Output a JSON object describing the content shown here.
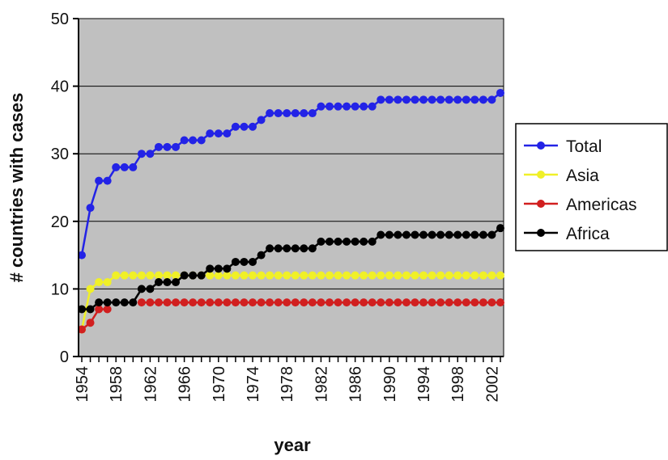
{
  "chart_data": {
    "type": "line",
    "title": "",
    "xlabel": "year",
    "ylabel": "# countries with cases",
    "ylim": [
      0,
      50
    ],
    "yticks": [
      0,
      10,
      20,
      30,
      40,
      50
    ],
    "xlim": [
      1954,
      2003
    ],
    "xticks": [
      1954,
      1958,
      1962,
      1966,
      1970,
      1974,
      1978,
      1982,
      1986,
      1990,
      1994,
      1998,
      2002
    ],
    "grid": true,
    "legend_position": "right",
    "plot_background": "#c0c0c0",
    "x": [
      1954,
      1955,
      1956,
      1957,
      1958,
      1959,
      1960,
      1961,
      1962,
      1963,
      1964,
      1965,
      1966,
      1967,
      1968,
      1969,
      1970,
      1971,
      1972,
      1973,
      1974,
      1975,
      1976,
      1977,
      1978,
      1979,
      1980,
      1981,
      1982,
      1983,
      1984,
      1985,
      1986,
      1987,
      1988,
      1989,
      1990,
      1991,
      1992,
      1993,
      1994,
      1995,
      1996,
      1997,
      1998,
      1999,
      2000,
      2001,
      2002,
      2003
    ],
    "series": [
      {
        "name": "Total",
        "color": "#2323e6",
        "values": [
          15,
          22,
          26,
          26,
          28,
          28,
          28,
          30,
          30,
          31,
          31,
          31,
          32,
          32,
          32,
          33,
          33,
          33,
          34,
          34,
          34,
          35,
          36,
          36,
          36,
          36,
          36,
          36,
          37,
          37,
          37,
          37,
          37,
          37,
          37,
          38,
          38,
          38,
          38,
          38,
          38,
          38,
          38,
          38,
          38,
          38,
          38,
          38,
          38,
          39
        ]
      },
      {
        "name": "Asia",
        "color": "#f0f028",
        "values": [
          4,
          10,
          11,
          11,
          12,
          12,
          12,
          12,
          12,
          12,
          12,
          12,
          12,
          12,
          12,
          12,
          12,
          12,
          12,
          12,
          12,
          12,
          12,
          12,
          12,
          12,
          12,
          12,
          12,
          12,
          12,
          12,
          12,
          12,
          12,
          12,
          12,
          12,
          12,
          12,
          12,
          12,
          12,
          12,
          12,
          12,
          12,
          12,
          12,
          12
        ]
      },
      {
        "name": "Americas",
        "color": "#d11f1f",
        "values": [
          4,
          5,
          7,
          7,
          null,
          null,
          null,
          8,
          8,
          8,
          8,
          8,
          8,
          8,
          8,
          8,
          8,
          8,
          8,
          8,
          8,
          8,
          8,
          8,
          8,
          8,
          8,
          8,
          8,
          8,
          8,
          8,
          8,
          8,
          8,
          8,
          8,
          8,
          8,
          8,
          8,
          8,
          8,
          8,
          8,
          8,
          8,
          8,
          8,
          8
        ]
      },
      {
        "name": "Africa",
        "color": "#000000",
        "values": [
          7,
          7,
          8,
          8,
          8,
          8,
          8,
          10,
          10,
          11,
          11,
          11,
          12,
          12,
          12,
          13,
          13,
          13,
          14,
          14,
          14,
          15,
          16,
          16,
          16,
          16,
          16,
          16,
          17,
          17,
          17,
          17,
          17,
          17,
          17,
          18,
          18,
          18,
          18,
          18,
          18,
          18,
          18,
          18,
          18,
          18,
          18,
          18,
          18,
          19
        ]
      }
    ]
  }
}
